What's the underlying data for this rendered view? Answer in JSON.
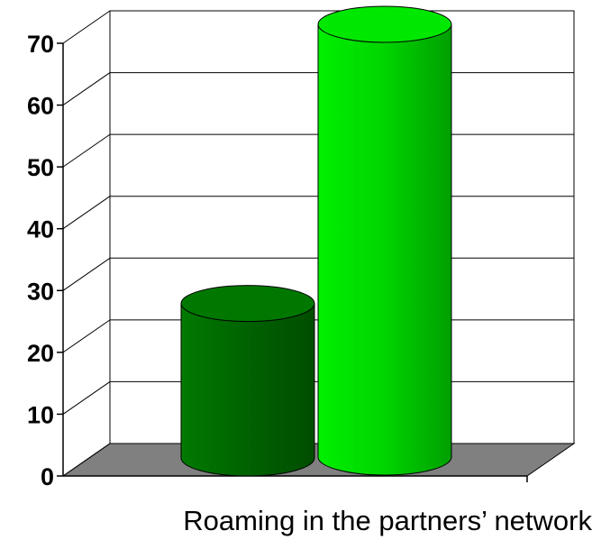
{
  "chart_data": {
    "type": "bar",
    "style": "3d-cylinder",
    "xlabel": "Roaming in the partners’ network",
    "categories": [
      "Roaming in the partners’ network"
    ],
    "series": [
      {
        "values": [
          25
        ],
        "color": "#006400"
      },
      {
        "values": [
          70
        ],
        "color": "#00d800"
      }
    ],
    "ylim": [
      0,
      70
    ],
    "yticks": [
      0,
      10,
      20,
      30,
      40,
      50,
      60,
      70
    ],
    "grid": true,
    "floor_color": "#808080"
  }
}
